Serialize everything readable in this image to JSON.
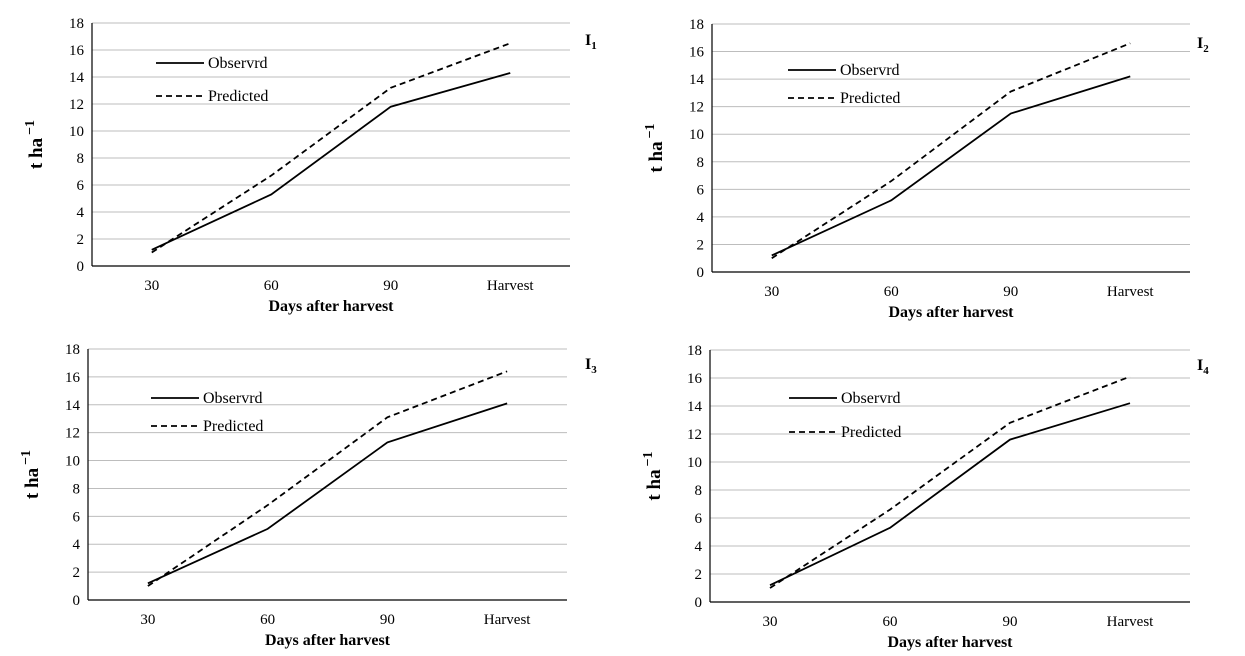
{
  "chart_data": [
    {
      "type": "line",
      "panel_label": "I",
      "panel_subscript": "1",
      "categories": [
        "30",
        "60",
        "90",
        "Harvest"
      ],
      "series": [
        {
          "name": "Observrd",
          "values": [
            1.2,
            5.3,
            11.8,
            14.3
          ],
          "style": "solid"
        },
        {
          "name": "Predicted",
          "values": [
            1.0,
            6.7,
            13.2,
            16.5
          ],
          "style": "dashed"
        }
      ],
      "xlabel": "Days after harvest",
      "ylabel": "t ha",
      "ylabel_sup": "−1",
      "ylim": [
        0,
        18
      ],
      "yticks": [
        "0",
        "2",
        "4",
        "6",
        "8",
        "10",
        "12",
        "14",
        "16",
        "18"
      ],
      "grid": true,
      "legend": "top-left"
    },
    {
      "type": "line",
      "panel_label": "I",
      "panel_subscript": "2",
      "categories": [
        "30",
        "60",
        "90",
        "Harvest"
      ],
      "series": [
        {
          "name": "Observrd",
          "values": [
            1.2,
            5.2,
            11.5,
            14.2
          ],
          "style": "solid"
        },
        {
          "name": "Predicted",
          "values": [
            1.0,
            6.6,
            13.1,
            16.6
          ],
          "style": "dashed"
        }
      ],
      "xlabel": "Days after harvest",
      "ylabel": "t ha",
      "ylabel_sup": "−1",
      "ylim": [
        0,
        18
      ],
      "yticks": [
        "0",
        "2",
        "4",
        "6",
        "8",
        "10",
        "12",
        "14",
        "16",
        "18"
      ],
      "grid": true,
      "legend": "top-left"
    },
    {
      "type": "line",
      "panel_label": "I",
      "panel_subscript": "3",
      "categories": [
        "30",
        "60",
        "90",
        "Harvest"
      ],
      "series": [
        {
          "name": "Observrd",
          "values": [
            1.2,
            5.1,
            11.3,
            14.1
          ],
          "style": "solid"
        },
        {
          "name": "Predicted",
          "values": [
            1.0,
            6.8,
            13.1,
            16.4
          ],
          "style": "dashed"
        }
      ],
      "xlabel": "Days after harvest",
      "ylabel": "t ha",
      "ylabel_sup": "−1",
      "ylim": [
        0,
        18
      ],
      "yticks": [
        "0",
        "2",
        "4",
        "6",
        "8",
        "10",
        "12",
        "14",
        "16",
        "18"
      ],
      "grid": true,
      "legend": "top-left"
    },
    {
      "type": "line",
      "panel_label": "I",
      "panel_subscript": "4",
      "categories": [
        "30",
        "60",
        "90",
        "Harvest"
      ],
      "series": [
        {
          "name": "Observrd",
          "values": [
            1.2,
            5.3,
            11.6,
            14.2
          ],
          "style": "solid"
        },
        {
          "name": "Predicted",
          "values": [
            1.0,
            6.6,
            12.8,
            16.1
          ],
          "style": "dashed"
        }
      ],
      "xlabel": "Days after harvest",
      "ylabel": "t ha",
      "ylabel_sup": "−1",
      "ylim": [
        0,
        18
      ],
      "yticks": [
        "0",
        "2",
        "4",
        "6",
        "8",
        "10",
        "12",
        "14",
        "16",
        "18"
      ],
      "grid": true,
      "legend": "top-left"
    }
  ]
}
